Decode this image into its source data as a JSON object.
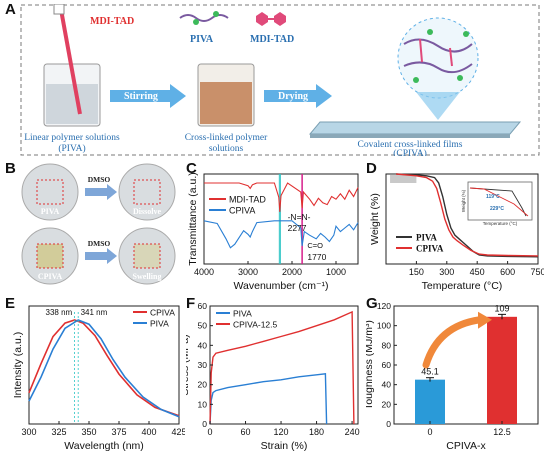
{
  "panels": {
    "A": {
      "label": "A",
      "reagent_label": "MDI-TAD",
      "legend_piva": "PIVA",
      "legend_mditad": "MDI-TAD",
      "arrow1": "Stirring",
      "arrow2": "Drying",
      "caption1": "Linear polymer solutions",
      "caption1b": "(PIVA)",
      "caption2": "Cross-linked polymer",
      "caption2b": "solutions",
      "caption3": "Covalent cross-linked films",
      "caption3b": "(CPIVA)"
    },
    "B": {
      "label": "B",
      "top_left": "PIVA",
      "top_right": "Dissolve",
      "bottom_left": "CPIVA",
      "bottom_right": "Swelling",
      "arrow_top": "DMSO",
      "arrow_bottom": "DMSO"
    },
    "C": {
      "label": "C",
      "ylabel": "Transmittance (a.u.)",
      "xlabel": "Wavenumber (cm⁻¹)",
      "annot1": "-N=N-",
      "annot1_val": "2277",
      "annot2": "C=O",
      "annot2_val": "1770"
    },
    "D": {
      "label": "D",
      "ylabel": "Weight (%)",
      "xlabel": "Temperature (°C)",
      "inset_a": "119°C",
      "inset_b": "229°C",
      "inset_ylabel": "Weight (%)",
      "inset_xlabel": "Temperature (°C)"
    },
    "E": {
      "label": "E",
      "ylabel": "Intensity (a.u.)",
      "xlabel": "Wavelength (nm)",
      "annot_left": "338 nm",
      "annot_right": "341 nm"
    },
    "F": {
      "label": "F",
      "ylabel": "Stress (MPa)",
      "xlabel": "Strain (%)"
    },
    "G": {
      "label": "G",
      "ylabel": "Toughness (MJ/m³)",
      "xlabel": "CPIVA-x"
    }
  },
  "colors": {
    "red": "#e03030",
    "blue": "#2a7fd4",
    "arrow_blue": "#5fb0e6",
    "orange": "#f0883a",
    "teal": "#2bc4c4",
    "magenta": "#d61e8c",
    "dashed_box": "#7a7a7a"
  },
  "chart_data": [
    {
      "id": "C",
      "type": "line",
      "xlim": [
        4000,
        500
      ],
      "xticks": [
        4000,
        3000,
        2000,
        1000
      ],
      "series": [
        {
          "name": "MDI-TAD",
          "color": "#e03030",
          "x": [
            4000,
            3600,
            3200,
            3000,
            2950,
            2900,
            2800,
            2400,
            2300,
            2277,
            2250,
            2100,
            1800,
            1770,
            1740,
            1600,
            1500,
            1400,
            1300,
            1200,
            1100,
            1000,
            900,
            800,
            700,
            600,
            500
          ],
          "y": [
            0.9,
            0.9,
            0.9,
            0.87,
            0.84,
            0.88,
            0.9,
            0.9,
            0.74,
            0.58,
            0.76,
            0.9,
            0.8,
            0.62,
            0.8,
            0.72,
            0.65,
            0.73,
            0.68,
            0.66,
            0.75,
            0.72,
            0.78,
            0.72,
            0.82,
            0.75,
            0.85
          ]
        },
        {
          "name": "CPIVA",
          "color": "#2a7fd4",
          "x": [
            4000,
            3700,
            3500,
            3400,
            3300,
            3100,
            3000,
            2950,
            2900,
            2800,
            2400,
            2000,
            1800,
            1770,
            1720,
            1600,
            1450,
            1350,
            1250,
            1150,
            1050,
            1000,
            900,
            800,
            700,
            600,
            500
          ],
          "y": [
            0.48,
            0.45,
            0.28,
            0.18,
            0.22,
            0.37,
            0.33,
            0.3,
            0.36,
            0.46,
            0.48,
            0.48,
            0.4,
            0.2,
            0.36,
            0.32,
            0.28,
            0.34,
            0.3,
            0.25,
            0.32,
            0.42,
            0.36,
            0.4,
            0.44,
            0.38,
            0.46
          ]
        }
      ]
    },
    {
      "id": "D",
      "type": "line",
      "xlim": [
        0,
        750
      ],
      "ylim": [
        0,
        100
      ],
      "xticks": [
        150,
        300,
        450,
        600,
        750
      ],
      "series": [
        {
          "name": "PIVA",
          "color": "#333333",
          "x": [
            50,
            150,
            200,
            240,
            260,
            280,
            300,
            320,
            340,
            360,
            380,
            400,
            430,
            460,
            500,
            600,
            750
          ],
          "y": [
            100,
            99,
            98,
            96,
            90,
            75,
            55,
            40,
            32,
            28,
            24,
            20,
            14,
            10,
            9,
            8.5,
            8
          ]
        },
        {
          "name": "CPIVA",
          "color": "#e03030",
          "x": [
            50,
            150,
            200,
            230,
            250,
            270,
            290,
            310,
            330,
            350,
            380,
            420,
            460,
            500,
            600,
            750
          ],
          "y": [
            100,
            98,
            96,
            92,
            84,
            68,
            50,
            38,
            30,
            26,
            21,
            15,
            11,
            10,
            9.5,
            9
          ]
        }
      ]
    },
    {
      "id": "E",
      "type": "line",
      "xlim": [
        300,
        425
      ],
      "xticks": [
        300,
        325,
        350,
        375,
        400,
        425
      ],
      "series": [
        {
          "name": "CPIVA",
          "color": "#e03030",
          "x": [
            300,
            310,
            320,
            330,
            338,
            345,
            355,
            365,
            375,
            390,
            405,
            425
          ],
          "y": [
            0.3,
            0.58,
            0.84,
            0.97,
            1.0,
            0.97,
            0.85,
            0.66,
            0.48,
            0.28,
            0.16,
            0.08
          ]
        },
        {
          "name": "PIVA",
          "color": "#2a7fd4",
          "x": [
            300,
            310,
            320,
            330,
            341,
            350,
            360,
            370,
            380,
            395,
            410,
            425
          ],
          "y": [
            0.22,
            0.45,
            0.72,
            0.92,
            1.0,
            0.96,
            0.82,
            0.62,
            0.45,
            0.26,
            0.14,
            0.07
          ]
        }
      ]
    },
    {
      "id": "F",
      "type": "line",
      "xlim": [
        0,
        250
      ],
      "ylim": [
        0,
        60
      ],
      "xticks": [
        0,
        60,
        120,
        180,
        240
      ],
      "yticks": [
        0,
        10,
        20,
        30,
        40,
        50,
        60
      ],
      "series": [
        {
          "name": "PIVA",
          "color": "#2a7fd4",
          "x": [
            0,
            2,
            5,
            10,
            30,
            60,
            90,
            120,
            150,
            180,
            195,
            197
          ],
          "y": [
            0,
            12,
            16,
            17,
            18.5,
            20,
            21.5,
            22.5,
            24,
            25,
            25.5,
            0
          ]
        },
        {
          "name": "CPIVA-12.5",
          "color": "#e03030",
          "x": [
            0,
            2,
            5,
            10,
            30,
            60,
            90,
            120,
            150,
            180,
            210,
            240,
            243
          ],
          "y": [
            0,
            26,
            34,
            36,
            37.5,
            39.5,
            42,
            44.5,
            47,
            50,
            53,
            57,
            0
          ]
        }
      ]
    },
    {
      "id": "G",
      "type": "bar",
      "categories": [
        "0",
        "12.5"
      ],
      "values": [
        45.1,
        109
      ],
      "errors": [
        2.0,
        2.5
      ],
      "colors": [
        "#2a9ad8",
        "#e03030"
      ],
      "ylim": [
        0,
        120
      ],
      "yticks": [
        0,
        20,
        40,
        60,
        80,
        100,
        120
      ]
    }
  ]
}
